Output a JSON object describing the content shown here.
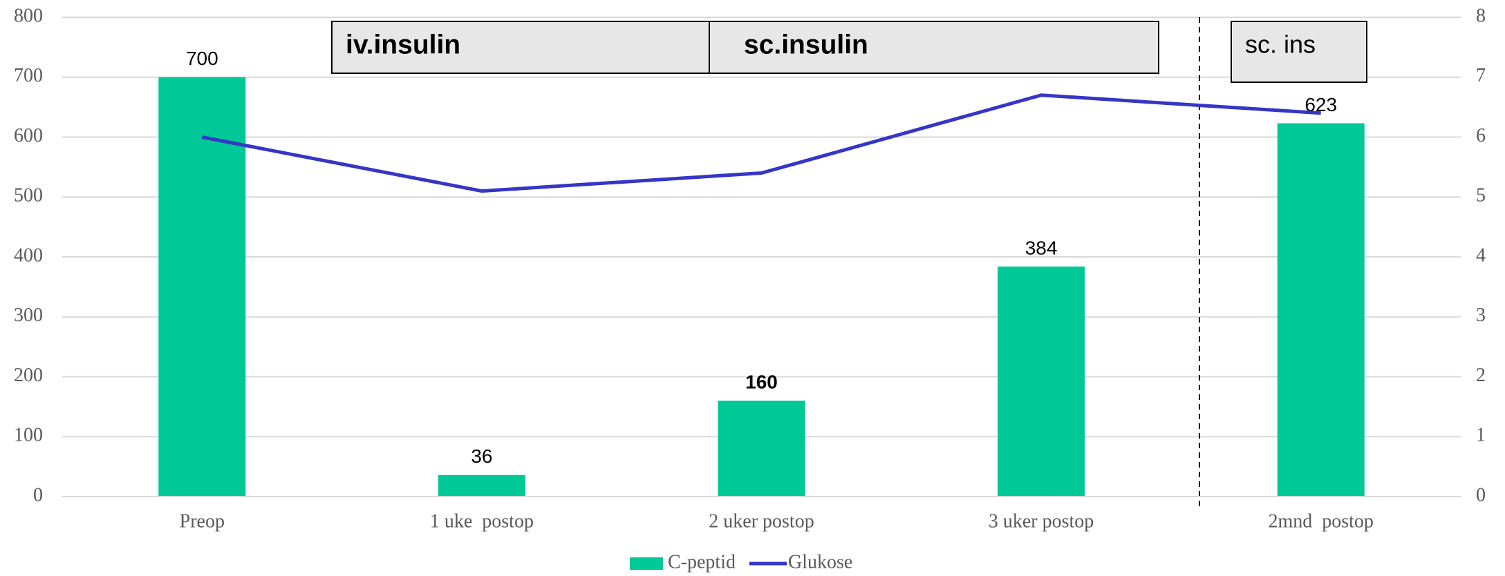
{
  "chart_data": {
    "type": "bar",
    "categories": [
      "Preop",
      "1 uke  postop",
      "2 uker postop",
      "3 uker postop",
      "2mnd  postop"
    ],
    "series": [
      {
        "name": "C-peptid",
        "type": "bar",
        "color": "#00c896",
        "values": [
          700,
          36,
          160,
          384,
          623
        ]
      },
      {
        "name": "Glukose",
        "type": "line",
        "color": "#3535c8",
        "axis": "y2",
        "values": [
          6.0,
          5.1,
          5.4,
          6.7,
          6.4
        ]
      }
    ],
    "ylim": [
      0,
      800
    ],
    "yticks": [
      0,
      100,
      200,
      300,
      400,
      500,
      600,
      700,
      800
    ],
    "y2lim": [
      0,
      8
    ],
    "y2ticks": [
      0,
      1,
      2,
      3,
      4,
      5,
      6,
      7,
      8
    ],
    "grid": true,
    "legend": "bottom",
    "annotations": [
      "iv.insulin",
      "sc.insulin",
      "sc. ins"
    ]
  }
}
